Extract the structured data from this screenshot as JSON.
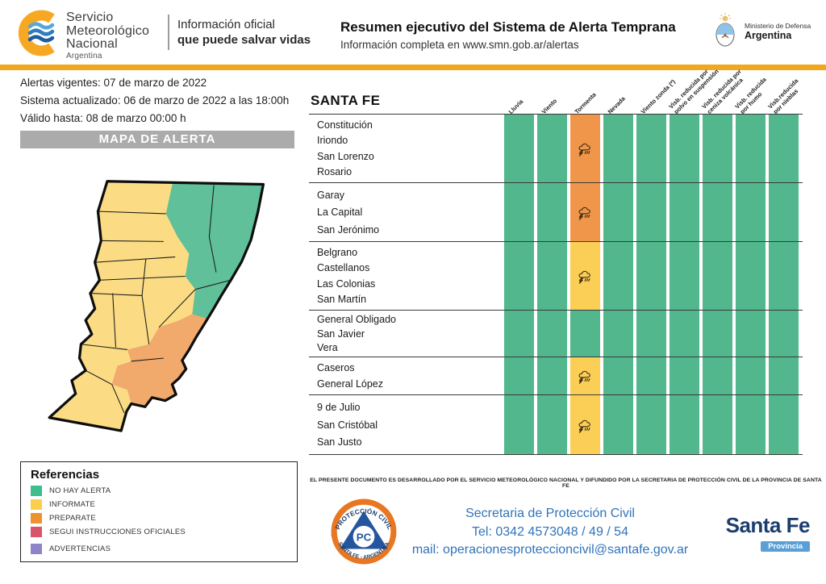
{
  "header": {
    "logo": {
      "line1": "Servicio",
      "line2": "Meteorológico",
      "line3": "Nacional",
      "country": "Argentina"
    },
    "tagline1": "Información oficial",
    "tagline2": "que puede salvar vidas",
    "title": "Resumen ejecutivo del Sistema de Alerta Temprana",
    "subtitle": "Información completa en www.smn.gob.ar/alertas",
    "ministry": {
      "line1": "Ministerio de Defensa",
      "line2": "Argentina"
    }
  },
  "left": {
    "info_lines": [
      "Alertas vigentes: 07 de marzo de 2022",
      "Sistema actualizado: 06 de marzo de 2022 a las 18:00h",
      "Válido hasta: 08 de marzo 00:00 h"
    ],
    "map_title": "MAPA DE ALERTA",
    "map_levels": {
      "northeast": "NO HAY ALERTA",
      "center_east_and_south": "PREPARATE",
      "west_north_and_southwest": "INFORMATE"
    },
    "legend": {
      "title": "Referencias",
      "items": [
        {
          "label": "NO HAY ALERTA",
          "color": "#3dbe8e"
        },
        {
          "label": "INFORMATE",
          "color": "#fbce4d"
        },
        {
          "label": "PREPARATE",
          "color": "#f0912f"
        },
        {
          "label": "SEGUI INSTRUCCIONES OFICIALES",
          "color": "#d9536b"
        },
        {
          "label": "ADVERTENCIAS",
          "color": "#8f84c8"
        }
      ]
    }
  },
  "table": {
    "region": "SANTA FE",
    "columns": [
      "Lluvia",
      "Viento",
      "Tormenta",
      "Nevada",
      "Viento zonda (*)",
      "Visb. reducida por\npolvo en suspensión",
      "Visb. reducida por\nceniza volcánica",
      "Visb. reducida\npor humo",
      "Visb.reducida\npor nieblas"
    ],
    "cell_colors": {
      "green": "#53b78d",
      "orange": "#f0964b",
      "yellow": "#fbce55"
    },
    "groups": [
      {
        "departments": [
          "Constitución",
          "Iriondo",
          "San Lorenzo",
          "Rosario"
        ],
        "cells": [
          "green",
          "green",
          "orange-storm",
          "green",
          "green",
          "green",
          "green",
          "green",
          "green"
        ]
      },
      {
        "departments": [
          "Garay",
          "La Capital",
          "San Jerónimo"
        ],
        "cells": [
          "green",
          "green",
          "orange-storm",
          "green",
          "green",
          "green",
          "green",
          "green",
          "green"
        ]
      },
      {
        "departments": [
          "Belgrano",
          "Castellanos",
          "Las Colonias",
          "San Martín"
        ],
        "cells": [
          "green",
          "green",
          "yellow-storm",
          "green",
          "green",
          "green",
          "green",
          "green",
          "green"
        ]
      },
      {
        "departments": [
          "General Obligado",
          "San Javier",
          "Vera"
        ],
        "cells": [
          "green",
          "green",
          "green",
          "green",
          "green",
          "green",
          "green",
          "green",
          "green"
        ]
      },
      {
        "departments": [
          "Caseros",
          "General López"
        ],
        "cells": [
          "green",
          "green",
          "yellow-storm",
          "green",
          "green",
          "green",
          "green",
          "green",
          "green"
        ]
      },
      {
        "departments": [
          "9 de Julio",
          "San Cristóbal",
          "San Justo"
        ],
        "cells": [
          "green",
          "green",
          "yellow-storm",
          "green",
          "green",
          "green",
          "green",
          "green",
          "green"
        ]
      }
    ]
  },
  "footer": {
    "disclaimer": "EL PRESENTE DOCUMENTO ES DESARROLLADO POR EL SERVICIO METEOROLÓGICO NACIONAL Y DIFUNDIDO POR LA SECRETARIA DE PROTECCIÓN CIVIL DE LA PROVINCIA DE SANTA FE",
    "pc_logo": {
      "arc_top": "PROTECCIÓN CIVIL",
      "center": "PC",
      "arc_bottom": "SANTA FE - ARGENTINA"
    },
    "contact_lines": [
      "Secretaria de Protección Civil",
      "Tel: 0342 4573048 / 49 / 54",
      "mail: operacionesproteccioncivil@santafe.gov.ar"
    ],
    "santafe_logo": {
      "name": "Santa Fe",
      "sub": "Provincia"
    }
  }
}
